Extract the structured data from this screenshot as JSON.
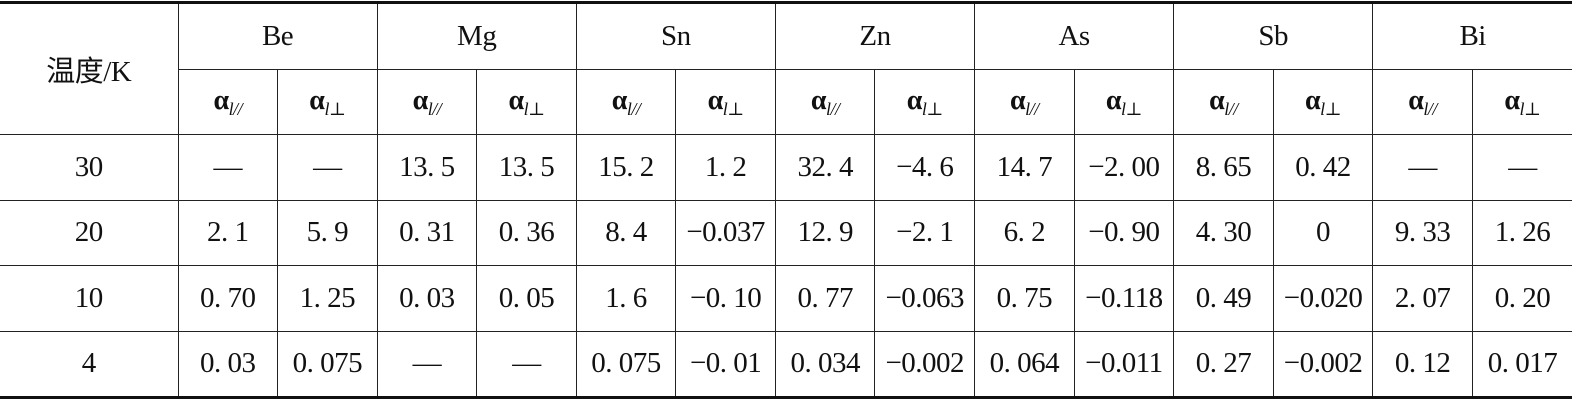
{
  "table": {
    "corner": "温度/K",
    "elements": [
      "Be",
      "Mg",
      "Sn",
      "Zn",
      "As",
      "Sb",
      "Bi"
    ],
    "subheaders": [
      {
        "symbol": "α",
        "sub": "l//"
      },
      {
        "symbol": "α",
        "sub": "l⊥"
      },
      {
        "symbol": "α",
        "sub": "l//"
      },
      {
        "symbol": "α",
        "sub": "l⊥"
      },
      {
        "symbol": "α",
        "sub": "l//"
      },
      {
        "symbol": "α",
        "sub": "l⊥"
      },
      {
        "symbol": "α",
        "sub": "l//"
      },
      {
        "symbol": "α",
        "sub": "l⊥"
      },
      {
        "symbol": "α",
        "sub": "l//"
      },
      {
        "symbol": "α",
        "sub": "l⊥"
      },
      {
        "symbol": "α",
        "sub": "l//"
      },
      {
        "symbol": "α",
        "sub": "l⊥"
      },
      {
        "symbol": "α",
        "sub": "l//"
      },
      {
        "symbol": "α",
        "sub": "l⊥"
      }
    ],
    "rows": [
      [
        "30",
        "—",
        "—",
        "13. 5",
        "13. 5",
        "15. 2",
        "1. 2",
        "32. 4",
        "−4. 6",
        "14. 7",
        "−2. 00",
        "8. 65",
        "0. 42",
        "—",
        "—"
      ],
      [
        "20",
        "2. 1",
        "5. 9",
        "0. 31",
        "0. 36",
        "8. 4",
        "−0.037",
        "12. 9",
        "−2. 1",
        "6. 2",
        "−0. 90",
        "4. 30",
        "0",
        "9. 33",
        "1. 26"
      ],
      [
        "10",
        "0. 70",
        "1. 25",
        "0. 03",
        "0. 05",
        "1. 6",
        "−0. 10",
        "0. 77",
        "−0.063",
        "0. 75",
        "−0.118",
        "0. 49",
        "−0.020",
        "2. 07",
        "0. 20"
      ],
      [
        "4",
        "0. 03",
        "0. 075",
        "—",
        "—",
        "0. 075",
        "−0. 01",
        "0. 034",
        "−0.002",
        "0. 064",
        "−0.011",
        "0. 27",
        "−0.002",
        "0. 12",
        "0. 017"
      ]
    ]
  }
}
